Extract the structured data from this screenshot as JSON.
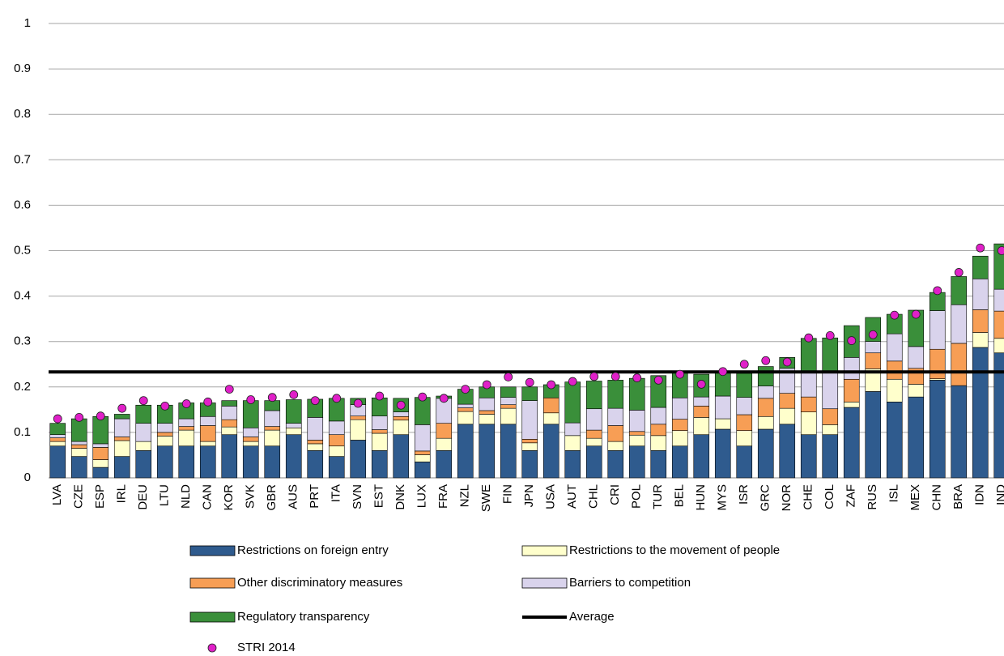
{
  "chart_data": {
    "type": "bar",
    "stacked": true,
    "categories": [
      "LVA",
      "CZE",
      "ESP",
      "IRL",
      "DEU",
      "LTU",
      "NLD",
      "CAN",
      "KOR",
      "SVK",
      "GBR",
      "AUS",
      "PRT",
      "ITA",
      "SVN",
      "EST",
      "DNK",
      "LUX",
      "FRA",
      "NZL",
      "SWE",
      "FIN",
      "JPN",
      "USA",
      "AUT",
      "CHL",
      "CRI",
      "POL",
      "TUR",
      "BEL",
      "HUN",
      "MYS",
      "ISR",
      "GRC",
      "NOR",
      "CHE",
      "COL",
      "ZAF",
      "RUS",
      "ISL",
      "MEX",
      "CHN",
      "BRA",
      "IDN",
      "IND"
    ],
    "series": [
      {
        "name": "Restrictions on foreign entry",
        "color": "#2f5b8e",
        "values": [
          0.07,
          0.047,
          0.023,
          0.047,
          0.06,
          0.07,
          0.07,
          0.07,
          0.095,
          0.07,
          0.07,
          0.095,
          0.06,
          0.047,
          0.083,
          0.06,
          0.095,
          0.035,
          0.06,
          0.118,
          0.118,
          0.118,
          0.06,
          0.118,
          0.06,
          0.07,
          0.06,
          0.07,
          0.06,
          0.07,
          0.095,
          0.107,
          0.07,
          0.107,
          0.118,
          0.095,
          0.095,
          0.155,
          0.19,
          0.167,
          0.178,
          0.215,
          0.203,
          0.287,
          0.275
        ]
      },
      {
        "name": "Restrictions to the movement of people",
        "color": "#ffffcc",
        "values": [
          0.01,
          0.018,
          0.017,
          0.035,
          0.02,
          0.022,
          0.035,
          0.01,
          0.017,
          0.01,
          0.035,
          0.015,
          0.015,
          0.023,
          0.045,
          0.038,
          0.032,
          0.016,
          0.027,
          0.028,
          0.022,
          0.035,
          0.017,
          0.025,
          0.033,
          0.017,
          0.02,
          0.024,
          0.033,
          0.034,
          0.038,
          0.023,
          0.034,
          0.028,
          0.035,
          0.05,
          0.022,
          0.012,
          0.05,
          0.05,
          0.028,
          0.003,
          0.0,
          0.033,
          0.032
        ]
      },
      {
        "name": "Other discriminatory measures",
        "color": "#f79e55",
        "values": [
          0.008,
          0.008,
          0.027,
          0.008,
          0.0,
          0.008,
          0.008,
          0.035,
          0.016,
          0.01,
          0.008,
          0.0,
          0.008,
          0.025,
          0.008,
          0.008,
          0.008,
          0.008,
          0.033,
          0.008,
          0.008,
          0.008,
          0.008,
          0.033,
          0.0,
          0.018,
          0.035,
          0.008,
          0.025,
          0.025,
          0.025,
          0.0,
          0.035,
          0.04,
          0.033,
          0.033,
          0.035,
          0.05,
          0.035,
          0.04,
          0.035,
          0.065,
          0.093,
          0.05,
          0.06
        ]
      },
      {
        "name": "Barriers to competition",
        "color": "#d9d3ec",
        "values": [
          0.007,
          0.007,
          0.008,
          0.04,
          0.04,
          0.02,
          0.017,
          0.02,
          0.03,
          0.02,
          0.035,
          0.01,
          0.05,
          0.03,
          0.025,
          0.03,
          0.01,
          0.058,
          0.055,
          0.008,
          0.028,
          0.016,
          0.085,
          0.0,
          0.028,
          0.047,
          0.038,
          0.047,
          0.037,
          0.047,
          0.02,
          0.05,
          0.038,
          0.027,
          0.055,
          0.056,
          0.083,
          0.048,
          0.025,
          0.06,
          0.048,
          0.085,
          0.085,
          0.068,
          0.048
        ]
      },
      {
        "name": "Regulatory transparency",
        "color": "#3a8f3a",
        "values": [
          0.025,
          0.05,
          0.06,
          0.01,
          0.04,
          0.04,
          0.035,
          0.03,
          0.012,
          0.06,
          0.022,
          0.052,
          0.04,
          0.05,
          0.014,
          0.04,
          0.03,
          0.06,
          0.005,
          0.033,
          0.024,
          0.023,
          0.03,
          0.029,
          0.09,
          0.061,
          0.062,
          0.07,
          0.07,
          0.055,
          0.05,
          0.053,
          0.053,
          0.043,
          0.024,
          0.073,
          0.073,
          0.07,
          0.053,
          0.043,
          0.08,
          0.04,
          0.062,
          0.05,
          0.1
        ]
      }
    ],
    "average": {
      "name": "Average",
      "value": 0.233,
      "color": "#000000"
    },
    "markers": {
      "name": "STRI 2014",
      "color": "#e020c8",
      "values": [
        0.13,
        0.133,
        0.136,
        0.153,
        0.17,
        0.158,
        0.163,
        0.167,
        0.195,
        0.172,
        0.177,
        0.183,
        0.17,
        0.175,
        0.164,
        0.18,
        0.16,
        0.178,
        0.175,
        0.195,
        0.205,
        0.222,
        0.21,
        0.205,
        0.212,
        0.223,
        0.223,
        0.22,
        0.215,
        0.228,
        0.206,
        0.234,
        0.25,
        0.258,
        0.255,
        0.308,
        0.313,
        0.302,
        0.315,
        0.358,
        0.36,
        0.412,
        0.452,
        0.506,
        0.5
      ]
    },
    "ylim": [
      0,
      1
    ],
    "yticks": [
      0,
      0.1,
      0.2,
      0.3,
      0.4,
      0.5,
      0.6,
      0.7,
      0.8,
      0.9,
      1
    ],
    "grid": true,
    "legend": "bottom"
  }
}
